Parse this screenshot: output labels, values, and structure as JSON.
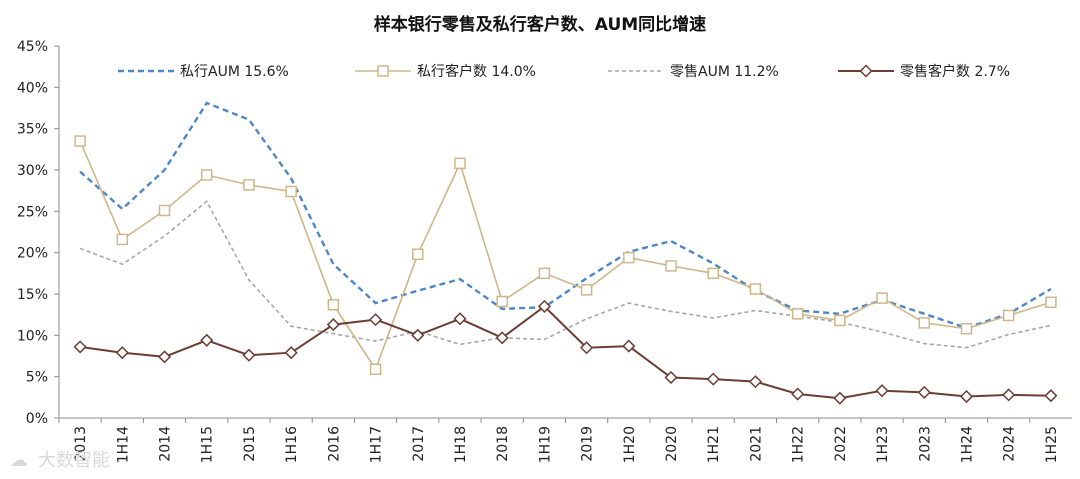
{
  "chart_data": {
    "type": "line",
    "title": "样本银行零售及私行客户数、AUM同比增速",
    "categories": [
      "2013",
      "1H14",
      "2014",
      "1H15",
      "2015",
      "1H16",
      "2016",
      "1H17",
      "2017",
      "1H18",
      "2018",
      "1H19",
      "2019",
      "1H20",
      "2020",
      "1H21",
      "2021",
      "1H22",
      "2022",
      "1H23",
      "2023",
      "1H24",
      "2024",
      "1H25"
    ],
    "yticks": [
      "0%",
      "5%",
      "10%",
      "15%",
      "20%",
      "25%",
      "30%",
      "35%",
      "40%",
      "45%"
    ],
    "ylim": [
      0,
      45
    ],
    "legend_position": "top",
    "series": [
      {
        "name": "私行AUM 15.6%",
        "style": "dashed",
        "color": "#4f86c6",
        "values": [
          29.8,
          25.3,
          30.0,
          38.1,
          36.1,
          29.0,
          18.6,
          13.9,
          15.4,
          16.8,
          13.2,
          13.4,
          16.9,
          20.1,
          21.4,
          18.7,
          15.4,
          13.0,
          12.6,
          14.3,
          12.6,
          10.9,
          12.6,
          15.6
        ]
      },
      {
        "name": "私行客户数 14.0%",
        "style": "solid-square",
        "color": "#cfb68a",
        "values": [
          33.5,
          21.6,
          25.1,
          29.4,
          28.2,
          27.4,
          13.7,
          5.9,
          19.8,
          30.8,
          14.1,
          17.5,
          15.5,
          19.4,
          18.4,
          17.5,
          15.6,
          12.6,
          11.8,
          14.5,
          11.5,
          10.8,
          12.4,
          14.0
        ]
      },
      {
        "name": "零售AUM 11.2%",
        "style": "dotted",
        "color": "#a6a6a6",
        "values": [
          20.5,
          18.6,
          22.0,
          26.2,
          16.7,
          11.1,
          10.2,
          9.3,
          10.5,
          8.9,
          9.7,
          9.5,
          12.0,
          13.9,
          12.9,
          12.1,
          13.0,
          12.3,
          11.6,
          10.4,
          9.0,
          8.5,
          10.1,
          11.2
        ]
      },
      {
        "name": "零售客户数 2.7%",
        "style": "solid-diamond",
        "color": "#6b3d33",
        "values": [
          8.6,
          7.9,
          7.4,
          9.4,
          7.6,
          7.9,
          11.3,
          11.9,
          10.0,
          12.0,
          9.7,
          13.5,
          8.5,
          8.7,
          4.9,
          4.7,
          4.4,
          2.9,
          2.4,
          3.3,
          3.1,
          2.6,
          2.8,
          2.7
        ]
      }
    ]
  },
  "watermark": "大数智能"
}
